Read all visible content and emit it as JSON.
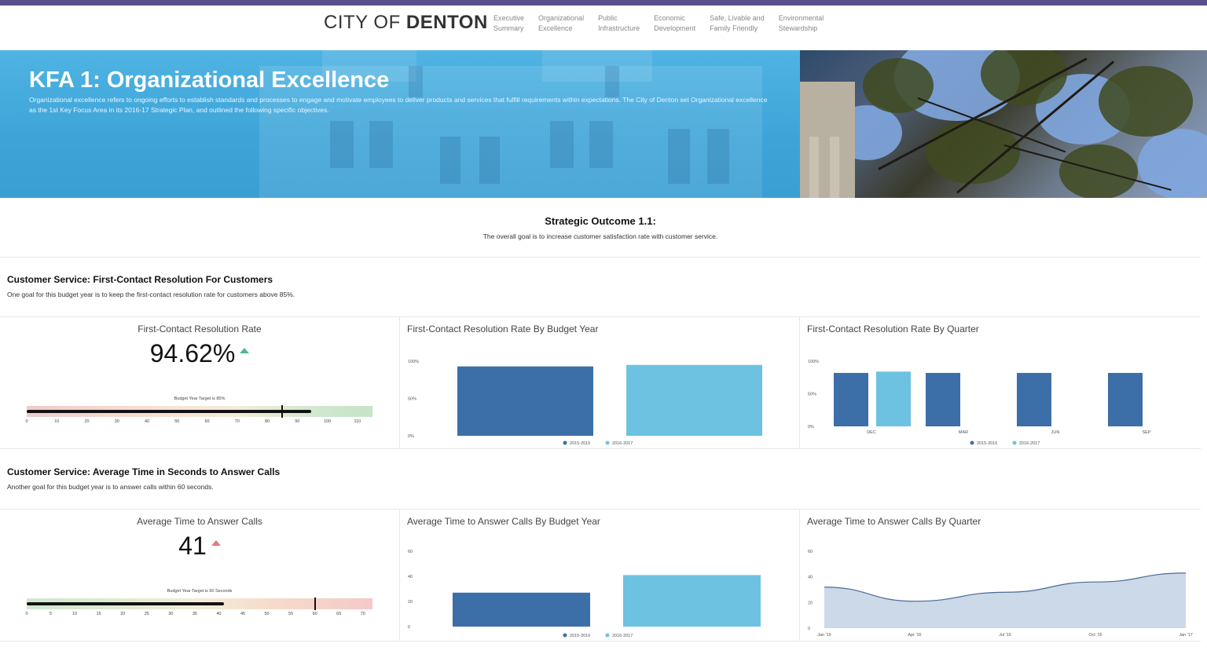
{
  "header": {
    "logo_light": "CITY OF ",
    "logo_bold": "DENTON",
    "nav": [
      {
        "label": "Executive\nSummary"
      },
      {
        "label": "Organizational\nExcellence"
      },
      {
        "label": "Public\nInfrastructure"
      },
      {
        "label": "Economic\nDevelopment"
      },
      {
        "label": "Safe, Livable and\nFamily Friendly"
      },
      {
        "label": "Environmental\nStewardship"
      }
    ]
  },
  "hero": {
    "title": "KFA 1: Organizational Excellence",
    "description": "Organizational excellence refers to ongoing efforts to establish standards and processes to engage and motivate employees to deliver products and services that fulfill requirements within expectations. The City of Denton set Organizational excellence as the 1st Key Focus Area in its 2016-17 Strategic Plan, and outlined the following specific objectives."
  },
  "outcome": {
    "title": "Strategic Outcome 1.1:",
    "description": "The overall goal is to increase customer satisfaction rate with customer service."
  },
  "section1": {
    "title": "Customer Service: First-Contact Resolution For Customers",
    "description": "One goal for this budget year is to keep the first-contact resolution rate for customers above 85%.",
    "kpi": {
      "title": "First-Contact Resolution Rate",
      "value": "94.62%",
      "trend": "up",
      "bullet_label": "Budget Year Target is 85%",
      "bullet_value": 94.62,
      "bullet_target": 85,
      "bullet_max": 115,
      "ticks": [
        "0",
        "10",
        "20",
        "30",
        "40",
        "50",
        "60",
        "70",
        "80",
        "90",
        "100",
        "110"
      ]
    },
    "budget_chart": {
      "title": "First-Contact Resolution Rate By Budget Year",
      "y_ticks": [
        "100%",
        "50%",
        "0%"
      ]
    },
    "quarter_chart": {
      "title": "First-Contact Resolution Rate By Quarter",
      "y_ticks": [
        "100%",
        "50%",
        "0%"
      ],
      "x_labels": [
        "DEC",
        "MAR",
        "JUN",
        "SEP"
      ]
    }
  },
  "section2": {
    "title": "Customer Service: Average Time in Seconds to Answer Calls",
    "description": "Another goal for this budget year is to answer calls within 60 seconds.",
    "kpi": {
      "title": "Average Time to Answer Calls",
      "value": "41",
      "trend": "up",
      "bullet_label": "Budget Year Target is 60 Seconds",
      "bullet_value": 41,
      "bullet_target": 60,
      "bullet_max": 72,
      "ticks": [
        "0",
        "5",
        "10",
        "15",
        "20",
        "25",
        "30",
        "35",
        "40",
        "45",
        "50",
        "55",
        "60",
        "65",
        "70"
      ]
    },
    "budget_chart": {
      "title": "Average Time to Answer Calls By Budget Year",
      "y_ticks": [
        "60",
        "40",
        "20",
        "0"
      ]
    },
    "quarter_chart": {
      "title": "Average Time to Answer Calls By Quarter",
      "y_ticks": [
        "60",
        "40",
        "20",
        "0"
      ],
      "x_labels": [
        "Jan '16",
        "Apr '16",
        "Jul '16",
        "Oct '16",
        "Jan '17"
      ]
    }
  },
  "legend": {
    "series_a": "2015-2016",
    "series_b": "2016-2017"
  },
  "colors": {
    "series_a": "#3c6ea8",
    "series_b": "#6cc2e0",
    "area": "#c5d5e6",
    "area_line": "#4a6b93"
  },
  "chart_data": [
    {
      "type": "bar",
      "title": "First-Contact Resolution Rate By Budget Year",
      "categories": [
        "2015-2016",
        "2016-2017"
      ],
      "values": [
        93,
        95
      ],
      "ylim": [
        0,
        100
      ]
    },
    {
      "type": "bar",
      "title": "First-Contact Resolution Rate By Quarter",
      "categories": [
        "",
        "DEC",
        "MAR",
        "JUN",
        "SEP"
      ],
      "series": [
        {
          "name": "2015-2016",
          "values": [
            82,
            null,
            82,
            82,
            82
          ]
        },
        {
          "name": "2016-2017",
          "values": [
            null,
            84,
            null,
            null,
            null
          ]
        }
      ],
      "ylim": [
        0,
        100
      ]
    },
    {
      "type": "bar",
      "title": "Average Time to Answer Calls By Budget Year",
      "categories": [
        "2015-2016",
        "2016-2017"
      ],
      "values": [
        27,
        41
      ],
      "ylim": [
        0,
        60
      ]
    },
    {
      "type": "area",
      "title": "Average Time to Answer Calls By Quarter",
      "x": [
        "Jan '16",
        "Apr '16",
        "Jul '16",
        "Oct '16",
        "Jan '17"
      ],
      "values": [
        32,
        21,
        28,
        36,
        43
      ],
      "ylim": [
        0,
        60
      ]
    }
  ]
}
